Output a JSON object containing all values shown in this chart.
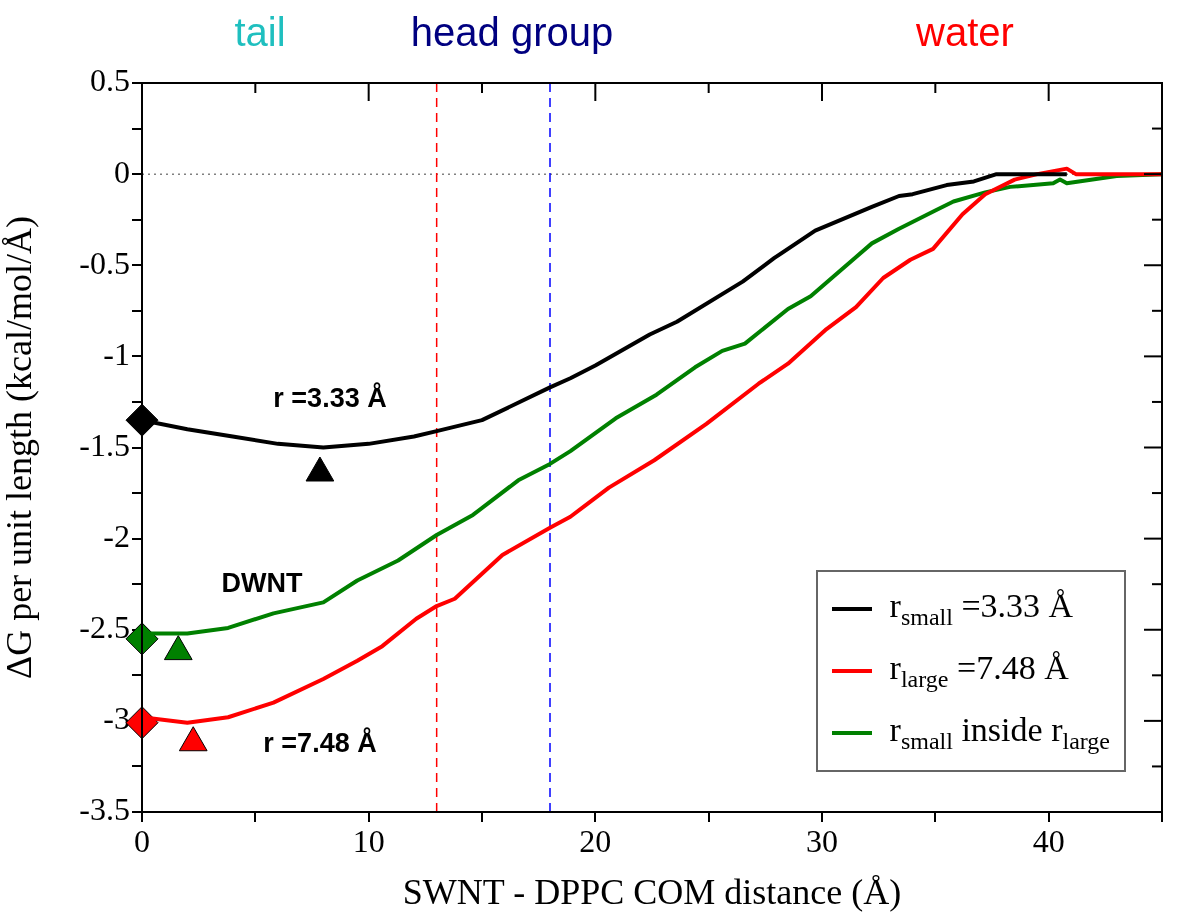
{
  "chart_data": {
    "type": "line",
    "xlabel": "SWNT - DPPC COM distance (Å)",
    "ylabel": "ΔG per unit length (kcal/mol/Å)",
    "xlim": [
      0,
      45
    ],
    "xticks": [
      0,
      {
        "value": 5,
        "label": null
      },
      10,
      {
        "value": 15,
        "label": null
      },
      20,
      {
        "value": 25,
        "label": null
      },
      30,
      {
        "value": 35,
        "label": null
      },
      40,
      {
        "value": 45,
        "label": null
      }
    ],
    "ylim": [
      -3.5,
      0.5
    ],
    "yticks": [
      -3.5,
      {
        "value": -3.25,
        "label": null
      },
      -3,
      {
        "value": -2.75,
        "label": null
      },
      -2.5,
      {
        "value": -2.25,
        "label": null
      },
      -2,
      {
        "value": -1.75,
        "label": null
      },
      -1.5,
      {
        "value": -1.25,
        "label": null
      },
      -1,
      {
        "value": -0.75,
        "label": null
      },
      -0.5,
      {
        "value": -0.25,
        "label": null
      },
      0,
      {
        "value": 0.25,
        "label": null
      },
      0.5
    ],
    "legend": "bottom right",
    "series": [
      {
        "name": "r$_{small}$ =3.33 Å",
        "color": "#000000",
        "x": [
          0,
          2,
          4,
          6,
          8,
          10,
          12,
          13,
          15,
          18,
          18.9,
          20,
          22.4,
          23.6,
          26.5,
          27.9,
          29.7,
          32.2,
          33.4,
          34,
          35.5,
          36.7,
          37.7,
          40.8
        ],
        "values": [
          -1.35,
          -1.4,
          -1.44,
          -1.48,
          -1.5,
          -1.48,
          -1.44,
          -1.41,
          -1.35,
          -1.17,
          -1.12,
          -1.05,
          -0.88,
          -0.81,
          -0.59,
          -0.46,
          -0.31,
          -0.18,
          -0.12,
          -0.11,
          -0.06,
          -0.04,
          0,
          0
        ]
      },
      {
        "name": "r$_{large}$ =7.48 Å",
        "color": "#ff0000",
        "x": [
          0,
          2,
          3.8,
          5.8,
          8,
          9.5,
          10.6,
          12.1,
          13,
          13.8,
          15.9,
          18,
          18.9,
          20.6,
          22.6,
          24.9,
          27.2,
          28.5,
          30.2,
          31.5,
          32.7,
          33.9,
          34.9,
          36.2,
          37.2,
          38.5,
          39.5,
          40.8,
          41.2,
          45
        ],
        "values": [
          -2.98,
          -3.01,
          -2.98,
          -2.9,
          -2.77,
          -2.67,
          -2.59,
          -2.44,
          -2.37,
          -2.33,
          -2.09,
          -1.94,
          -1.88,
          -1.72,
          -1.57,
          -1.37,
          -1.15,
          -1.04,
          -0.85,
          -0.73,
          -0.57,
          -0.47,
          -0.41,
          -0.22,
          -0.11,
          -0.03,
          0,
          0.03,
          0,
          0
        ]
      },
      {
        "name": "r$_{small}$ inside r$_{large}$",
        "color": "#008000",
        "x": [
          0,
          2,
          3.8,
          5.8,
          8,
          9.5,
          11.3,
          13,
          14.6,
          16.6,
          18,
          18.9,
          20.9,
          22.7,
          24.4,
          25.6,
          26.6,
          28.5,
          29.5,
          32.2,
          33.4,
          35,
          35.8,
          37.2,
          38.3,
          40.2,
          40.5,
          40.8,
          43,
          45
        ],
        "values": [
          -2.52,
          -2.52,
          -2.49,
          -2.41,
          -2.35,
          -2.23,
          -2.12,
          -1.98,
          -1.87,
          -1.68,
          -1.59,
          -1.52,
          -1.34,
          -1.21,
          -1.06,
          -0.97,
          -0.93,
          -0.74,
          -0.67,
          -0.38,
          -0.3,
          -0.2,
          -0.15,
          -0.1,
          -0.07,
          -0.05,
          -0.03,
          -0.05,
          -0.01,
          0
        ]
      },
      {
        "type": "scatter",
        "marker": "diamond",
        "color": "#000000",
        "x": [
          0
        ],
        "values": [
          -1.35
        ]
      },
      {
        "type": "scatter",
        "marker": "triangle",
        "color": "#000000",
        "x": [
          7.85
        ],
        "values": [
          -1.64
        ]
      },
      {
        "type": "scatter",
        "marker": "diamond",
        "color": "#008000",
        "x": [
          0
        ],
        "values": [
          -2.55
        ]
      },
      {
        "type": "scatter",
        "marker": "triangle",
        "color": "#008000",
        "x": [
          1.6
        ],
        "values": [
          -2.62
        ]
      },
      {
        "type": "scatter",
        "marker": "diamond",
        "color": "#ff0000",
        "x": [
          0
        ],
        "values": [
          -3.01
        ]
      },
      {
        "type": "scatter",
        "marker": "triangle",
        "color": "#ff0000",
        "x": [
          2.26
        ],
        "values": [
          -3.12
        ]
      }
    ],
    "ref_lines": [
      {
        "axis": "y",
        "value": 0,
        "color": "#808080",
        "line_style": "dotted"
      },
      {
        "axis": "x",
        "value": 13,
        "color": "#ff0000",
        "line_style": "dashed"
      },
      {
        "axis": "x",
        "value": 18,
        "color": "#0000ff",
        "line_style": "dashed"
      }
    ],
    "annotations": [
      "tail",
      "head group",
      "water",
      "r =3.33 Å",
      "DWNT",
      "r =7.48 Å"
    ]
  }
}
